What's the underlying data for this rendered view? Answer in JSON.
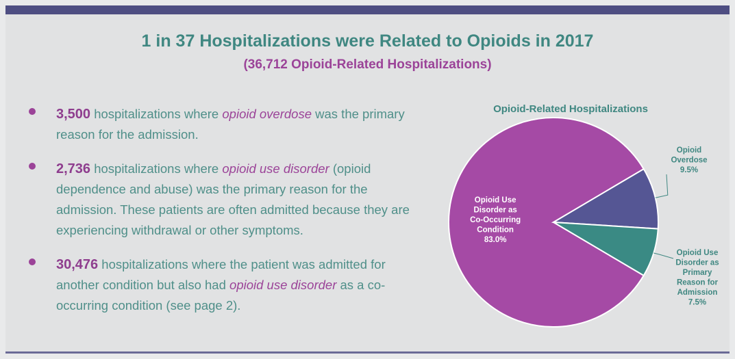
{
  "header": {
    "title": "1 in 37 Hospitalizations were Related to Opioids in 2017",
    "subtitle": "(36,712 Opioid-Related Hospitalizations)"
  },
  "bullets": [
    {
      "number": "3,500",
      "text_before": " hospitalizations where ",
      "emphasis": "opioid overdose",
      "text_after": " was the primary reason for the admission."
    },
    {
      "number": "2,736",
      "text_before": " hospitalizations where ",
      "emphasis": "opioid use disorder",
      "text_after": " (opioid dependence and abuse) was the primary reason for the admission. These patients are often admitted because they are experiencing withdrawal or other symptoms."
    },
    {
      "number": "30,476",
      "text_before": " hospitalizations where the patient was admitted for another condition but also had ",
      "emphasis": "opioid use disorder",
      "text_after": " as a co-occurring condition (see page 2)."
    }
  ],
  "colors": {
    "accent_teal": "#3f8781",
    "accent_purple": "#9b4398",
    "header_bar": "#4e4e82"
  },
  "chart_data": {
    "type": "pie",
    "title": "Opioid-Related Hospitalizations",
    "slices": [
      {
        "label_lines": [
          "Opioid Use",
          "Disorder as",
          "Co-Occurring",
          "Condition",
          "83.0%"
        ],
        "value": 83.0,
        "color": "#a54aa5",
        "label_color": "#ffffff",
        "label_position": "inside"
      },
      {
        "label_lines": [
          "Opioid",
          "Overdose",
          "9.5%"
        ],
        "value": 9.5,
        "color": "#555694",
        "label_color": "#3f8781",
        "label_position": "outside-right"
      },
      {
        "label_lines": [
          "Opioid Use",
          "Disorder as",
          "Primary",
          "Reason for",
          "Admission",
          "7.5%"
        ],
        "value": 7.5,
        "color": "#3a8a84",
        "label_color": "#3f8781",
        "label_position": "outside-right"
      }
    ]
  }
}
